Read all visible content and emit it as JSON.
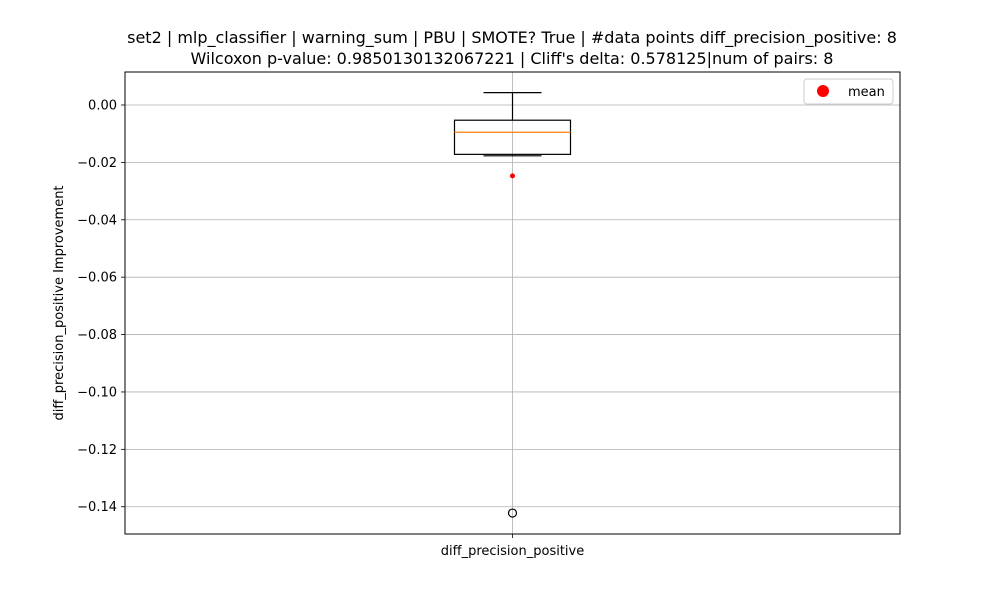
{
  "chart_data": {
    "type": "box",
    "title_line1": "set2 | mlp_classifier | warning_sum | PBU | SMOTE? True | #data points diff_precision_positive: 8",
    "title_line2": "Wilcoxon p-value: 0.9850130132067221 | Cliff's delta: 0.578125|num of pairs: 8",
    "xlabel": "",
    "ylabel": "diff_precision_positive Improvement",
    "categories": [
      "diff_precision_positive"
    ],
    "ylim": [
      -0.1495,
      0.0115
    ],
    "yticks": [
      0.0,
      -0.02,
      -0.04,
      -0.06,
      -0.08,
      -0.1,
      -0.12,
      -0.14
    ],
    "ytick_labels": [
      "0.00",
      "−0.02",
      "−0.04",
      "−0.06",
      "−0.08",
      "−0.10",
      "−0.12",
      "−0.14"
    ],
    "grid": true,
    "legend": {
      "placement": "top-right",
      "entries": [
        {
          "label": "mean",
          "color": "#ff0000"
        }
      ]
    },
    "boxes": [
      {
        "category": "diff_precision_positive",
        "whisker_low": -0.0177,
        "q1": -0.0172,
        "median": -0.0095,
        "q3": -0.0053,
        "whisker_high": 0.0043,
        "mean": -0.0247,
        "outliers": [
          -0.1422
        ]
      }
    ],
    "colors": {
      "box": "#000000",
      "median": "#ff7f0e",
      "mean": "#ff0000",
      "grid": "#b0b0b0"
    }
  }
}
